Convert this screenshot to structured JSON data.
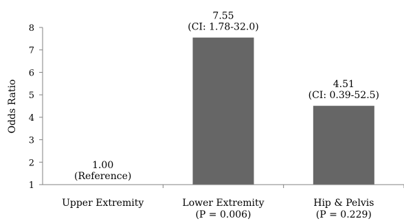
{
  "chart_data": {
    "type": "bar",
    "title": "",
    "xlabel": "",
    "ylabel": "Odds Ratio",
    "ylim": [
      1,
      8
    ],
    "yticks": [
      "1",
      "2",
      "3",
      "4",
      "5",
      "6",
      "7",
      "8"
    ],
    "grid": false,
    "bar_color": "#666666",
    "categories": [
      "Upper Extremity",
      "Lower Extremity",
      "Hip & Pelvis"
    ],
    "category_sublabels": [
      "",
      "(P = 0.006)",
      "(P = 0.229)"
    ],
    "values": [
      1.0,
      7.55,
      4.51
    ],
    "data_labels": [
      "1.00",
      "7.55",
      "4.51"
    ],
    "data_sublabels": [
      "(Reference)",
      "(CI: 1.78-32.0)",
      "(CI: 0.39-52.5)"
    ]
  }
}
